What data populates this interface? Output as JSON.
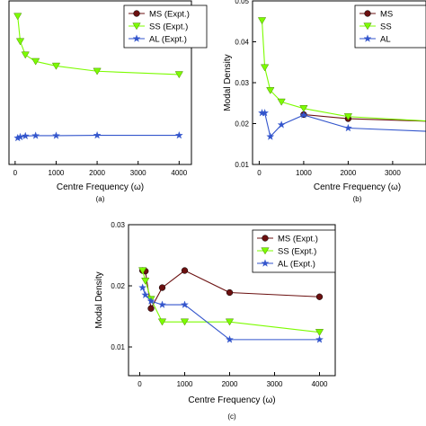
{
  "chart_data": [
    {
      "panel_label": "(a)",
      "type": "line",
      "xlabel": "Centre Frequency (ω)",
      "ylabel": "",
      "xlim": [
        -150,
        4300
      ],
      "ylim": [
        0,
        0.05
      ],
      "xticks": [
        0,
        1000,
        2000,
        3000,
        4000
      ],
      "yticks": [],
      "grid": false,
      "legend_position": "top-right",
      "series": [
        {
          "name": "MS (Expt.)",
          "color": "#6b1010",
          "marker": "circle",
          "x": [],
          "y": []
        },
        {
          "name": "SS (Expt.)",
          "color": "#7cfc00",
          "marker": "triangle-down",
          "x": [
            63,
            125,
            250,
            500,
            1000,
            2000,
            4000
          ],
          "y": [
            0.0453,
            0.0376,
            0.0335,
            0.0315,
            0.0301,
            0.0285,
            0.0275
          ]
        },
        {
          "name": "AL (Expt.)",
          "color": "#3355cc",
          "marker": "star",
          "x": [
            63,
            125,
            250,
            500,
            1000,
            2000,
            4000
          ],
          "y": [
            0.0081,
            0.0084,
            0.0087,
            0.0088,
            0.0088,
            0.0089,
            0.0089
          ]
        }
      ]
    },
    {
      "panel_label": "(b)",
      "type": "line",
      "xlabel": "Centre Frequency (ω)",
      "ylabel": "Modal Density",
      "xlim": [
        -150,
        3750
      ],
      "ylim": [
        0.01,
        0.05
      ],
      "xticks": [
        0,
        1000,
        2000,
        3000
      ],
      "yticks": [
        0.01,
        0.02,
        0.03,
        0.04,
        0.05
      ],
      "grid": false,
      "legend_position": "top-right",
      "series": [
        {
          "name": "MS",
          "color": "#6b1010",
          "marker": "circle",
          "x": [
            1000,
            2000,
            4000
          ],
          "y": [
            0.0222,
            0.0212,
            0.0205
          ]
        },
        {
          "name": "SS",
          "color": "#7cfc00",
          "marker": "triangle-down",
          "x": [
            63,
            125,
            250,
            500,
            1000,
            2000,
            4000
          ],
          "y": [
            0.0452,
            0.0337,
            0.0281,
            0.0253,
            0.0237,
            0.0217,
            0.0205
          ]
        },
        {
          "name": "AL",
          "color": "#3355cc",
          "marker": "star",
          "x": [
            63,
            125,
            250,
            500,
            1000,
            2000,
            4000
          ],
          "y": [
            0.0226,
            0.0226,
            0.0168,
            0.0197,
            0.0221,
            0.0189,
            0.018
          ]
        }
      ]
    },
    {
      "panel_label": "(c)",
      "type": "line",
      "xlabel": "Centre Frequency (ω)",
      "ylabel": "Modal Density",
      "xlim": [
        -250,
        4350
      ],
      "ylim": [
        0.0053,
        0.03
      ],
      "xticks": [
        0,
        1000,
        2000,
        3000,
        4000
      ],
      "yticks": [
        0.01,
        0.02,
        0.03
      ],
      "grid": false,
      "legend_position": "top-right",
      "series": [
        {
          "name": "MS (Expt.)",
          "color": "#6b1010",
          "marker": "circle",
          "x": [
            63,
            125,
            250,
            500,
            1000,
            2000,
            4000
          ],
          "y": [
            0.0225,
            0.0224,
            0.0163,
            0.0197,
            0.0225,
            0.0189,
            0.0182
          ]
        },
        {
          "name": "SS (Expt.)",
          "color": "#7cfc00",
          "marker": "triangle-down",
          "x": [
            63,
            125,
            250,
            500,
            1000,
            2000,
            4000
          ],
          "y": [
            0.0225,
            0.0208,
            0.0178,
            0.0141,
            0.0141,
            0.0141,
            0.0124
          ]
        },
        {
          "name": "AL (Expt.)",
          "color": "#3355cc",
          "marker": "star",
          "x": [
            63,
            125,
            250,
            500,
            1000,
            2000,
            4000
          ],
          "y": [
            0.0197,
            0.0185,
            0.0175,
            0.0169,
            0.0169,
            0.0112,
            0.0112
          ]
        }
      ]
    }
  ]
}
